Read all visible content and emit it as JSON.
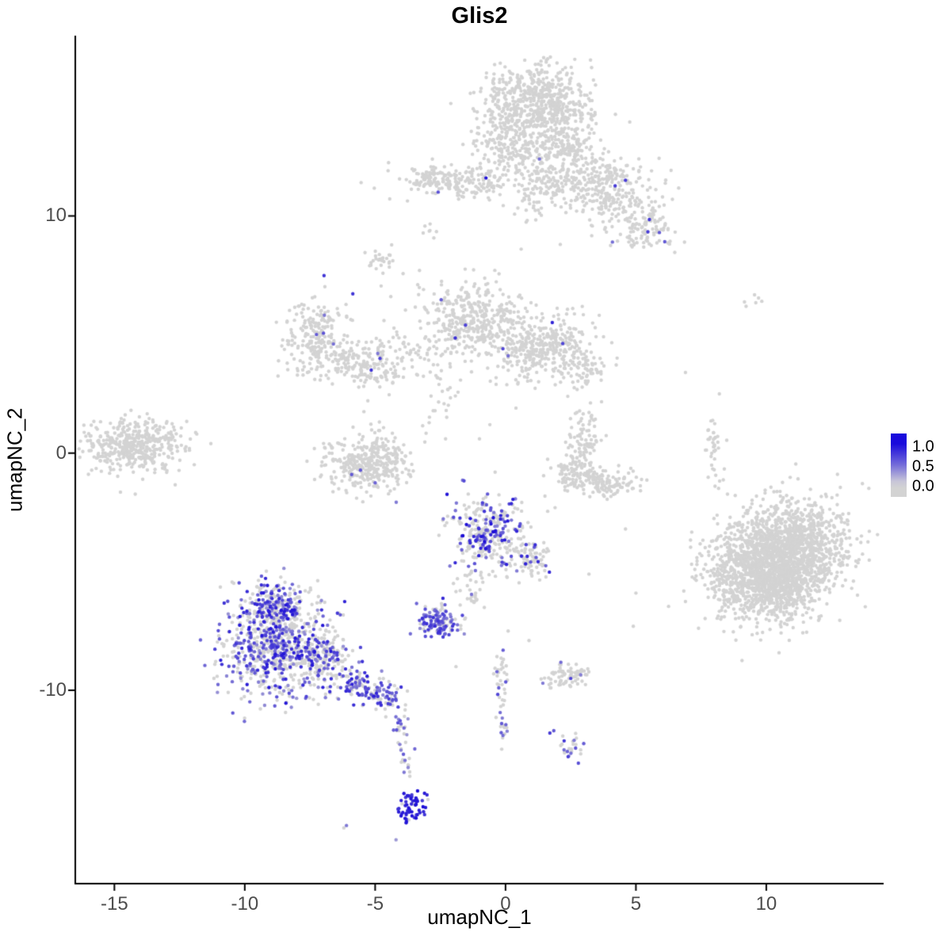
{
  "chart_data": {
    "type": "scatter",
    "title": "Glis2",
    "xlabel": "umapNC_1",
    "ylabel": "umapNC_2",
    "xlim": [
      -16.5,
      14.5
    ],
    "ylim": [
      -18.15,
      17.6
    ],
    "x_tick_values": [
      -15,
      -10,
      -5,
      0,
      5,
      10
    ],
    "x_tick_labels": [
      "-15",
      "-10",
      "-5",
      "0",
      "5",
      "10"
    ],
    "y_tick_values": [
      -10,
      0,
      10
    ],
    "y_tick_labels": [
      "-10",
      "0",
      "10"
    ],
    "grid": false,
    "point_color_zero": "#d3d3d3",
    "point_color_high": "#190ad7",
    "legend": {
      "position": "right",
      "labels": [
        "1.0",
        "0.5",
        "0.0"
      ],
      "low_color": "#d3d3d3",
      "high_color": "#190ad7"
    },
    "clusters": [
      {
        "cx": 1.2,
        "cy": 14.7,
        "sx": 1.05,
        "sy": 0.85,
        "n": 650,
        "f": 0.003
      },
      {
        "cx": 0.2,
        "cy": 13.0,
        "sx": 0.75,
        "sy": 0.55,
        "n": 170,
        "f": 0
      },
      {
        "cx": 2.3,
        "cy": 12.9,
        "sx": 0.6,
        "sy": 0.5,
        "n": 130,
        "f": 0
      },
      {
        "cx": -1.5,
        "cy": 11.4,
        "sx": 1.15,
        "sy": 0.35,
        "n": 190,
        "f": 0.005,
        "lo": 0.6,
        "hi": 1.0
      },
      {
        "cx": -2.95,
        "cy": 11.6,
        "sx": 0.4,
        "sy": 0.28,
        "n": 55,
        "f": 0
      },
      {
        "cx": 2.0,
        "cy": 11.5,
        "sx": 0.6,
        "sy": 0.45,
        "n": 120,
        "f": 0
      },
      {
        "cx": 3.9,
        "cy": 11.1,
        "sx": 0.85,
        "sy": 0.65,
        "n": 280,
        "f": 0.008,
        "lo": 0.4,
        "hi": 0.8
      },
      {
        "cx": 5.3,
        "cy": 9.5,
        "sx": 0.55,
        "sy": 0.45,
        "n": 110,
        "f": 0.01,
        "lo": 0.4,
        "hi": 0.8
      },
      {
        "cx": 1.0,
        "cy": 10.5,
        "sx": 0.25,
        "sy": 0.45,
        "n": 30,
        "f": 0
      },
      {
        "cx": -2.9,
        "cy": 9.45,
        "sx": 0.15,
        "sy": 0.18,
        "n": 7,
        "f": 0
      },
      {
        "cx": -7.3,
        "cy": 4.9,
        "sx": 0.6,
        "sy": 0.85,
        "n": 230,
        "f": 0.01,
        "lo": 0.4,
        "hi": 0.8
      },
      {
        "cx": -6.1,
        "cy": 3.9,
        "sx": 0.45,
        "sy": 0.45,
        "n": 70,
        "f": 0.01
      },
      {
        "cx": -5.0,
        "cy": 3.6,
        "sx": 0.5,
        "sy": 0.45,
        "n": 90,
        "f": 0.02,
        "lo": 0.5,
        "hi": 0.85
      },
      {
        "cx": -1.3,
        "cy": 5.6,
        "sx": 0.95,
        "sy": 0.8,
        "n": 390,
        "f": 0.004
      },
      {
        "cx": 1.5,
        "cy": 4.5,
        "sx": 0.95,
        "sy": 0.7,
        "n": 390,
        "f": 0.003
      },
      {
        "cx": 3.1,
        "cy": 3.6,
        "sx": 0.4,
        "sy": 0.35,
        "n": 50,
        "f": 0
      },
      {
        "cx": -3.6,
        "cy": 4.4,
        "sx": 1.1,
        "sy": 0.55,
        "n": 55,
        "f": 0
      },
      {
        "cx": -2.5,
        "cy": 2.5,
        "sx": 0.3,
        "sy": 0.8,
        "n": 30,
        "f": 0
      },
      {
        "cx": -4.8,
        "cy": 8.2,
        "sx": 0.3,
        "sy": 0.4,
        "n": 30,
        "f": 0
      },
      {
        "cx": -14.3,
        "cy": 0.3,
        "sx": 0.85,
        "sy": 0.55,
        "n": 420,
        "f": 0
      },
      {
        "cx": -12.8,
        "cy": 0.9,
        "sx": 0.35,
        "sy": 0.35,
        "n": 25,
        "f": 0
      },
      {
        "cx": -5.3,
        "cy": -0.35,
        "sx": 0.8,
        "sy": 0.6,
        "n": 360,
        "f": 0.015,
        "lo": 0.4,
        "hi": 0.8
      },
      {
        "cx": 3.1,
        "cy": 0.55,
        "sx": 0.35,
        "sy": 0.6,
        "n": 90,
        "f": 0
      },
      {
        "cx": 2.7,
        "cy": -0.9,
        "sx": 0.5,
        "sy": 0.35,
        "n": 100,
        "f": 0
      },
      {
        "cx": 3.9,
        "cy": -1.25,
        "sx": 0.6,
        "sy": 0.3,
        "n": 110,
        "f": 0
      },
      {
        "cx": 7.95,
        "cy": 0.6,
        "sx": 0.15,
        "sy": 0.5,
        "n": 30,
        "f": 0
      },
      {
        "cx": 8.3,
        "cy": -0.8,
        "sx": 0.15,
        "sy": 0.45,
        "n": 10,
        "f": 0
      },
      {
        "cx": 9.5,
        "cy": 6.4,
        "sx": 0.3,
        "sy": 0.15,
        "n": 6,
        "f": 0
      },
      {
        "cx": 9.7,
        "cy": -4.9,
        "sx": 1.05,
        "sy": 1.05,
        "n": 1050,
        "f": 0
      },
      {
        "cx": 11.1,
        "cy": -4.0,
        "sx": 1.05,
        "sy": 1.0,
        "n": 1050,
        "f": 0
      },
      {
        "cx": 10.3,
        "cy": -5.8,
        "sx": 0.8,
        "sy": 0.6,
        "n": 300,
        "f": 0
      },
      {
        "cx": -0.7,
        "cy": -3.4,
        "sx": 0.7,
        "sy": 0.75,
        "n": 300,
        "f": 0.3,
        "lo": 0.4,
        "hi": 1.0
      },
      {
        "cx": 0.8,
        "cy": -4.4,
        "sx": 0.5,
        "sy": 0.4,
        "n": 90,
        "f": 0.12,
        "lo": 0.4,
        "hi": 0.9
      },
      {
        "cx": -1.3,
        "cy": -5.5,
        "sx": 0.25,
        "sy": 0.55,
        "n": 35,
        "f": 0.15,
        "lo": 0.4,
        "hi": 0.8
      },
      {
        "cx": -2.6,
        "cy": -7.1,
        "sx": 0.42,
        "sy": 0.33,
        "n": 130,
        "f": 0.7,
        "lo": 0.35,
        "hi": 0.85
      },
      {
        "cx": -8.8,
        "cy": -8.2,
        "sx": 1.05,
        "sy": 1.0,
        "n": 750,
        "f": 0.45,
        "lo": 0.3,
        "hi": 0.95
      },
      {
        "cx": -8.9,
        "cy": -6.3,
        "sx": 0.6,
        "sy": 0.5,
        "n": 170,
        "f": 0.45,
        "lo": 0.3,
        "hi": 0.95
      },
      {
        "cx": -7.0,
        "cy": -8.7,
        "sx": 0.6,
        "sy": 0.55,
        "n": 150,
        "f": 0.35,
        "lo": 0.3,
        "hi": 0.9
      },
      {
        "cx": -5.7,
        "cy": -9.7,
        "sx": 0.5,
        "sy": 0.35,
        "n": 90,
        "f": 0.5,
        "lo": 0.35,
        "hi": 0.9
      },
      {
        "cx": -4.7,
        "cy": -10.3,
        "sx": 0.4,
        "sy": 0.3,
        "n": 70,
        "f": 0.55,
        "lo": 0.35,
        "hi": 0.9
      },
      {
        "cx": -4.0,
        "cy": -11.4,
        "sx": 0.15,
        "sy": 0.5,
        "n": 22,
        "f": 0.5,
        "lo": 0.3,
        "hi": 0.8
      },
      {
        "cx": -3.8,
        "cy": -13.0,
        "sx": 0.12,
        "sy": 0.5,
        "n": 15,
        "f": 0.3,
        "lo": 0.3,
        "hi": 0.7
      },
      {
        "cx": -3.6,
        "cy": -14.9,
        "sx": 0.28,
        "sy": 0.42,
        "n": 60,
        "f": 0.85,
        "lo": 0.7,
        "hi": 1.0
      },
      {
        "cx": 2.4,
        "cy": -9.4,
        "sx": 0.45,
        "sy": 0.28,
        "n": 75,
        "f": 0.04,
        "lo": 0.4,
        "hi": 0.7
      },
      {
        "cx": -0.2,
        "cy": -9.2,
        "sx": 0.15,
        "sy": 0.4,
        "n": 22,
        "f": 0.1,
        "lo": 0.4,
        "hi": 0.7
      },
      {
        "cx": -0.1,
        "cy": -10.9,
        "sx": 0.12,
        "sy": 0.7,
        "n": 24,
        "f": 0.2,
        "lo": 0.4,
        "hi": 0.7
      },
      {
        "cx": 2.6,
        "cy": -12.4,
        "sx": 0.25,
        "sy": 0.25,
        "n": 25,
        "f": 0.35,
        "lo": 0.4,
        "hi": 0.8
      }
    ],
    "singles": [
      [
        4.6,
        11.5,
        0.75
      ],
      [
        4.1,
        8.9,
        0.5
      ],
      [
        5.9,
        9.3,
        0.6
      ],
      [
        -0.75,
        11.6,
        0.95
      ],
      [
        1.3,
        12.4,
        0.5
      ],
      [
        -7.25,
        5.0,
        0.6
      ],
      [
        -6.6,
        4.6,
        0.5
      ],
      [
        -5.15,
        3.5,
        0.8
      ],
      [
        -4.9,
        4.2,
        0.45
      ],
      [
        -0.1,
        4.4,
        0.7
      ],
      [
        0.1,
        4.1,
        0.5
      ],
      [
        -5.9,
        -0.9,
        0.6
      ],
      [
        -5.0,
        -1.25,
        0.55
      ],
      [
        2.5,
        -9.5,
        0.7
      ],
      [
        -0.15,
        -11.4,
        0.6
      ],
      [
        -0.1,
        -11.9,
        0.5
      ],
      [
        1.7,
        -11.8,
        0.75
      ],
      [
        1.85,
        -11.7,
        0.6
      ],
      [
        -6.1,
        -15.7,
        0.45
      ],
      [
        -6.2,
        -15.8,
        0
      ],
      [
        -4.2,
        -16.3,
        0.3
      ],
      [
        4.9,
        -7.3,
        0
      ],
      [
        3.2,
        -5.1,
        0
      ],
      [
        5.0,
        -5.9,
        0
      ],
      [
        1.9,
        -2.3,
        0
      ],
      [
        -0.4,
        -0.8,
        0
      ],
      [
        -1.0,
        0.6,
        0
      ],
      [
        -2.3,
        0.6,
        0
      ],
      [
        0.4,
        1.9,
        0
      ],
      [
        -0.6,
        1.2,
        0
      ],
      [
        6.9,
        3.4,
        0
      ],
      [
        8.2,
        2.5,
        0
      ],
      [
        -11.3,
        0.4,
        0
      ],
      [
        4.6,
        -3.2,
        0
      ],
      [
        0.1,
        -7.5,
        0
      ],
      [
        0.9,
        -7.9,
        0
      ],
      [
        -1.9,
        -9.0,
        0
      ],
      [
        5.6,
        11.9,
        0
      ],
      [
        6.4,
        10.7,
        0
      ],
      [
        -4.4,
        6.6,
        0
      ],
      [
        -3.3,
        7.7,
        0
      ],
      [
        2.1,
        8.8,
        0
      ],
      [
        0.6,
        8.6,
        0
      ]
    ]
  }
}
